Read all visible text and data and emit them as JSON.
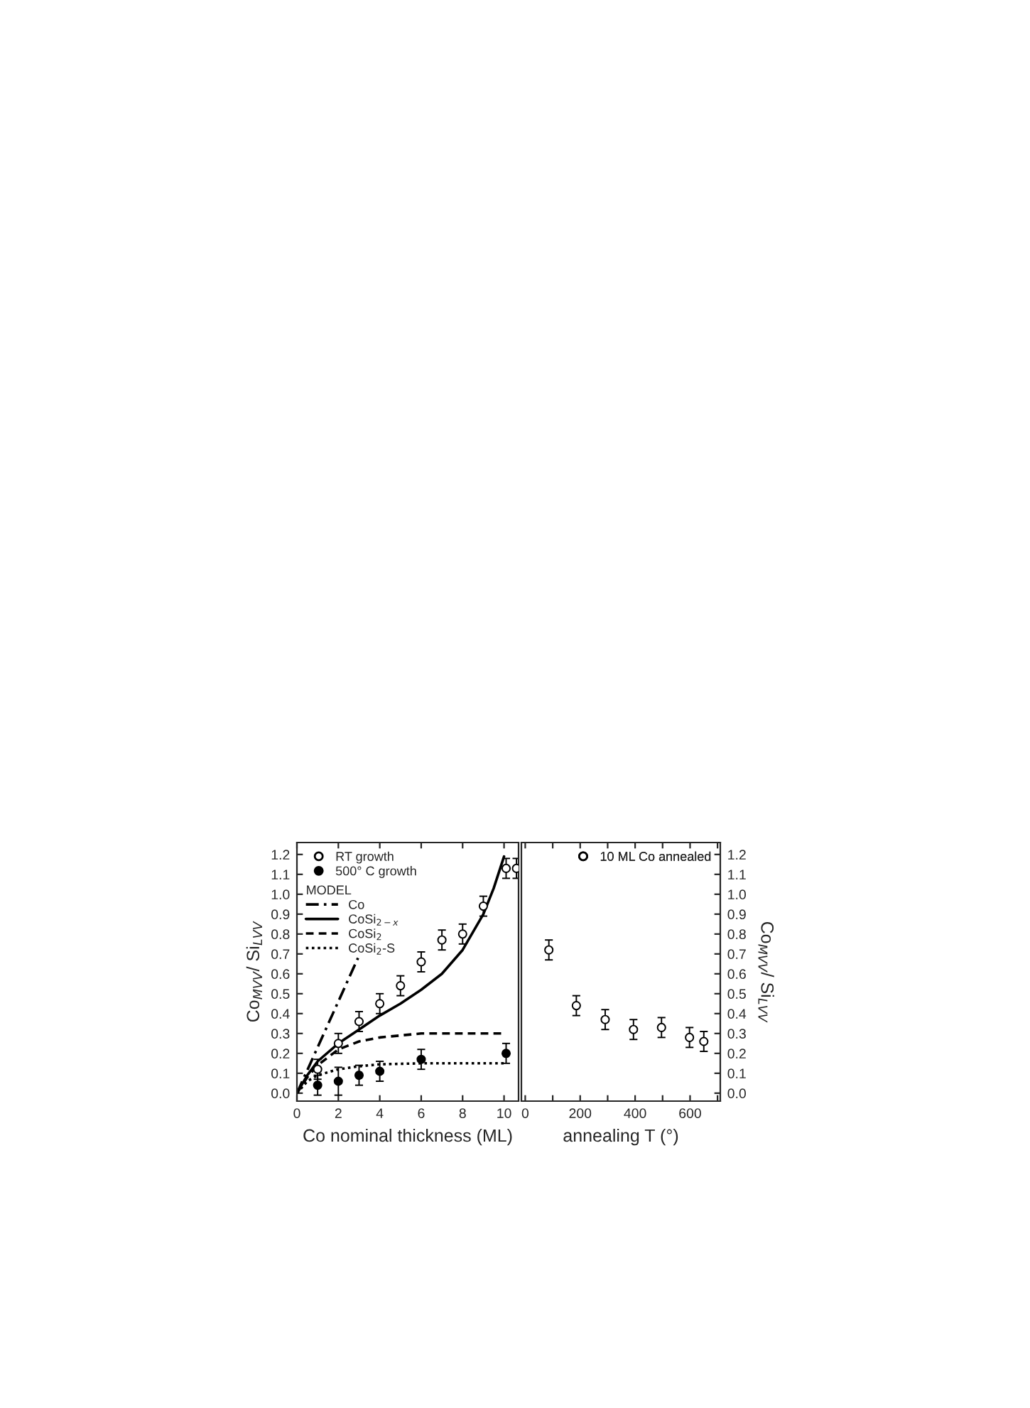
{
  "chart_data": [
    {
      "type": "scatter",
      "xlabel": "Co nominal thickness (ML)",
      "ylabel": "Co$_{MVV}$/ Si$_{LVV}$",
      "legend_title": "MODEL",
      "legend": "top left",
      "xlim": [
        0,
        10.7
      ],
      "xticks": [
        0,
        2,
        4,
        6,
        8,
        10
      ],
      "ylim": [
        -0.04,
        1.26
      ],
      "yticks": [
        {
          "value": 0,
          "label": "0.0"
        },
        {
          "value": 0.1,
          "label": "0.1"
        },
        {
          "value": 0.2,
          "label": "0.2"
        },
        {
          "value": 0.3,
          "label": "0.3"
        },
        {
          "value": 0.4,
          "label": "0.4"
        },
        {
          "value": 0.5,
          "label": "0.5"
        },
        {
          "value": 0.6,
          "label": "0.6"
        },
        {
          "value": 0.7,
          "label": "0.7"
        },
        {
          "value": 0.8,
          "label": "0.8"
        },
        {
          "value": 0.9,
          "label": "0.9"
        },
        {
          "value": 1.0,
          "label": "1.0"
        },
        {
          "value": 1.1,
          "label": "1.1"
        },
        {
          "value": 1.2,
          "label": "1.2"
        }
      ],
      "grid": false,
      "series": [
        {
          "name": "RT growth",
          "marker": "circle",
          "color": "#ffffff",
          "x": [
            1,
            2,
            3,
            4,
            5,
            6,
            7,
            8,
            9,
            10.1,
            10.6
          ],
          "values": [
            0.12,
            0.25,
            0.36,
            0.45,
            0.54,
            0.66,
            0.77,
            0.8,
            0.94,
            1.13,
            1.13
          ],
          "errors": [
            0.05,
            0.05,
            0.05,
            0.05,
            0.05,
            0.05,
            0.05,
            0.05,
            0.05,
            0.05,
            0.05
          ]
        },
        {
          "name": "500° C growth",
          "marker": "circle",
          "color": "#000000",
          "x": [
            1,
            2,
            3,
            4,
            6,
            10.1
          ],
          "values": [
            0.04,
            0.06,
            0.09,
            0.11,
            0.17,
            0.2
          ],
          "errors": [
            0.05,
            0.07,
            0.05,
            0.05,
            0.05,
            0.05
          ]
        },
        {
          "name": "Co",
          "type": "line",
          "line_style": "dashdot",
          "color": "#000000",
          "x": [
            0,
            2.95
          ],
          "values": [
            0,
            0.68
          ]
        },
        {
          "name": "CoSi$_{2−x}$",
          "type": "line",
          "line_style": "solid",
          "color": "#000000",
          "x": [
            0,
            0.5,
            1,
            2,
            3,
            4,
            5,
            6,
            7,
            8,
            9,
            9.5,
            10
          ],
          "values": [
            0,
            0.09,
            0.16,
            0.25,
            0.32,
            0.39,
            0.45,
            0.52,
            0.6,
            0.72,
            0.9,
            1.03,
            1.19
          ]
        },
        {
          "name": "CoSi$_{2}$",
          "type": "line",
          "line_style": "dashed",
          "color": "#000000",
          "x": [
            0,
            0.5,
            1,
            2,
            3,
            4,
            5,
            6,
            8,
            10
          ],
          "values": [
            0,
            0.08,
            0.14,
            0.22,
            0.26,
            0.28,
            0.29,
            0.3,
            0.3,
            0.3
          ]
        },
        {
          "name": "CoSi$_{2}$-S",
          "type": "line",
          "line_style": "dotted",
          "color": "#000000",
          "x": [
            0,
            0.5,
            1,
            2,
            3,
            4,
            6,
            10
          ],
          "values": [
            0,
            0.06,
            0.09,
            0.12,
            0.135,
            0.145,
            0.15,
            0.15
          ]
        }
      ]
    },
    {
      "type": "scatter",
      "xlabel": "annealing T (°)",
      "y2label": "Co$_{MVV}$/ Si$_{LVV}$",
      "legend": "top right",
      "xlim": [
        -14,
        710
      ],
      "xticks": [
        0,
        {
          "value": 100,
          "label": null
        },
        200,
        {
          "value": 300,
          "label": null
        },
        400,
        {
          "value": 500,
          "label": null
        },
        600,
        {
          "value": 700,
          "label": null
        }
      ],
      "y2lim": [
        -0.04,
        1.26
      ],
      "y2ticks": [
        {
          "value": 0,
          "label": "0.0"
        },
        {
          "value": 0.1,
          "label": "0.1"
        },
        {
          "value": 0.2,
          "label": "0.2"
        },
        {
          "value": 0.3,
          "label": "0.3"
        },
        {
          "value": 0.4,
          "label": "0.4"
        },
        {
          "value": 0.5,
          "label": "0.5"
        },
        {
          "value": 0.6,
          "label": "0.6"
        },
        {
          "value": 0.7,
          "label": "0.7"
        },
        {
          "value": 0.8,
          "label": "0.8"
        },
        {
          "value": 0.9,
          "label": "0.9"
        },
        {
          "value": 1.0,
          "label": "1.0"
        },
        {
          "value": 1.1,
          "label": "1.1"
        },
        {
          "value": 1.2,
          "label": "1.2"
        }
      ],
      "grid": false,
      "series": [
        {
          "name": "10 ML Co annealed",
          "axis": "y2",
          "marker": "circle",
          "color": "#ffffff",
          "x": [
            86,
            186,
            291,
            394,
            496,
            598,
            650
          ],
          "values": [
            0.72,
            0.44,
            0.37,
            0.32,
            0.33,
            0.28,
            0.26
          ],
          "errors": [
            0.05,
            0.05,
            0.05,
            0.05,
            0.05,
            0.05,
            0.05
          ]
        }
      ]
    }
  ]
}
